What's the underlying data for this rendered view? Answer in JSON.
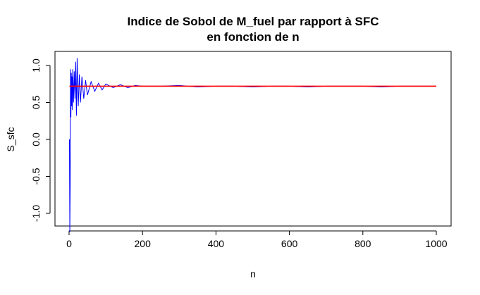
{
  "chart_data": {
    "type": "line",
    "title": [
      "Indice de Sobol de M_fuel par rapport à SFC",
      "en fonction de n"
    ],
    "xlabel": "n",
    "ylabel": "S_sfc",
    "xlim": [
      0,
      1000
    ],
    "ylim": [
      -1.3,
      1.15
    ],
    "x_ticks": [
      0,
      200,
      400,
      600,
      800,
      1000
    ],
    "x_tick_labels": [
      "0",
      "200",
      "400",
      "600",
      "800",
      "1000"
    ],
    "y_ticks": [
      -1.0,
      -0.5,
      0.0,
      0.5,
      1.0
    ],
    "y_tick_labels": [
      "-1.0",
      "-0.5",
      "0.0",
      "0.5",
      "1.0"
    ],
    "grid": false,
    "legend": "none",
    "series": [
      {
        "color": "#0000ff",
        "x": [
          1,
          2,
          3,
          4,
          5,
          6,
          7,
          8,
          9,
          10,
          12,
          14,
          16,
          18,
          20,
          22,
          25,
          28,
          31,
          35,
          40,
          45,
          50,
          60,
          70,
          80,
          90,
          100,
          120,
          140,
          160,
          180,
          200,
          250,
          300,
          350,
          400,
          450,
          500,
          550,
          600,
          650,
          700,
          750,
          800,
          850,
          900,
          950,
          1000
        ],
        "values": [
          0.0,
          -1.25,
          -0.6,
          0.95,
          0.3,
          0.9,
          0.45,
          0.85,
          0.4,
          0.95,
          0.5,
          0.92,
          0.55,
          1.05,
          0.32,
          1.1,
          0.45,
          0.88,
          0.5,
          0.85,
          0.55,
          0.8,
          0.6,
          0.78,
          0.65,
          0.76,
          0.67,
          0.75,
          0.7,
          0.74,
          0.7,
          0.73,
          0.72,
          0.72,
          0.73,
          0.71,
          0.72,
          0.72,
          0.71,
          0.72,
          0.72,
          0.71,
          0.72,
          0.72,
          0.72,
          0.71,
          0.72,
          0.72,
          0.72
        ]
      },
      {
        "color": "#ff0000",
        "x": [
          1,
          1000
        ],
        "values": [
          0.72,
          0.72
        ]
      }
    ]
  }
}
